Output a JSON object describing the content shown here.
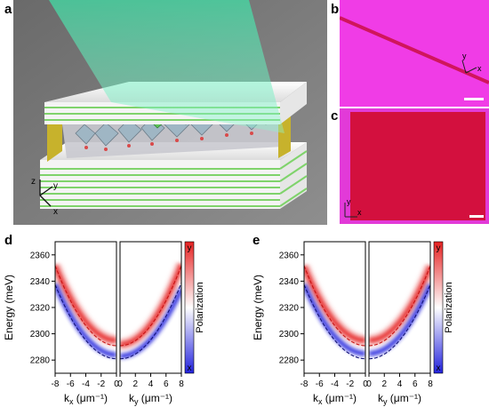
{
  "panels": {
    "a": {
      "letter": "a",
      "axes": {
        "z": "z",
        "y": "y",
        "x": "x"
      }
    },
    "b": {
      "letter": "b",
      "axes": {
        "y": "y",
        "x": "x"
      },
      "colors": {
        "bg": "#f03ce6",
        "line": "#d0155c"
      }
    },
    "c": {
      "letter": "c",
      "axes": {
        "y": "y",
        "x": "x"
      },
      "colors": {
        "bg": "#e23ad8",
        "square": "#d3103e"
      }
    },
    "d": {
      "letter": "d"
    },
    "e": {
      "letter": "e"
    }
  },
  "chart_data": [
    {
      "type": "heatmap",
      "panel": "d",
      "ylabel": "Energy (meV)",
      "ylim": [
        2270,
        2370
      ],
      "yticks": [
        "2360",
        "2340",
        "2320",
        "2300",
        "2280"
      ],
      "colorbar": {
        "label": "Polarization",
        "top": "y",
        "bottom": "x",
        "colors": [
          "#e62222",
          "#ffffff",
          "#2222dd"
        ]
      },
      "subplots": [
        {
          "xlabel_base": "k",
          "xlabel_sub": "x",
          "xlabel_unit": " (μm⁻¹)",
          "xlim": [
            -8,
            0
          ],
          "xticks": [
            "-8",
            "-6",
            "-4",
            "-2",
            "0"
          ],
          "red_branch": {
            "E0": 2295,
            "a": 0.89
          },
          "blue_branch": {
            "E0": 2284,
            "a": 0.84
          },
          "dashed_red": {
            "E0": 2291,
            "a": 0.95
          },
          "dashed_blue": {
            "E0": 2281,
            "a": 0.88
          }
        },
        {
          "xlabel_base": "k",
          "xlabel_sub": "y",
          "xlabel_unit": " (μm⁻¹)",
          "xlim": [
            0,
            8
          ],
          "xticks": [
            "0",
            "2",
            "4",
            "6",
            "8"
          ],
          "red_branch": {
            "E0": 2292,
            "a": 0.95
          },
          "blue_branch": {
            "E0": 2283,
            "a": 0.8
          },
          "dashed_red": {
            "E0": 2291,
            "a": 0.95
          },
          "dashed_blue": {
            "E0": 2281,
            "a": 0.9
          }
        }
      ]
    },
    {
      "type": "heatmap",
      "panel": "e",
      "ylabel": "Energy (meV)",
      "ylim": [
        2270,
        2370
      ],
      "yticks": [
        "2360",
        "2340",
        "2320",
        "2300",
        "2280"
      ],
      "colorbar": {
        "label": "Polarization",
        "top": "y",
        "bottom": "x",
        "colors": [
          "#e62222",
          "#ffffff",
          "#2222dd"
        ]
      },
      "subplots": [
        {
          "xlabel_base": "k",
          "xlabel_sub": "x",
          "xlabel_unit": " (μm⁻¹)",
          "xlim": [
            -8,
            0
          ],
          "xticks": [
            "-8",
            "-6",
            "-4",
            "-2",
            "0"
          ],
          "red_branch": {
            "E0": 2295,
            "a": 0.88
          },
          "blue_branch": {
            "E0": 2285,
            "a": 0.82
          },
          "dashed_red": {
            "E0": 2291,
            "a": 0.95
          },
          "dashed_blue": {
            "E0": 2281,
            "a": 0.88
          }
        },
        {
          "xlabel_base": "k",
          "xlabel_sub": "y",
          "xlabel_unit": " (μm⁻¹)",
          "xlim": [
            0,
            8
          ],
          "xticks": [
            "0",
            "2",
            "4",
            "6",
            "8"
          ],
          "red_branch": {
            "E0": 2295,
            "a": 0.88
          },
          "blue_branch": {
            "E0": 2285,
            "a": 0.82
          },
          "dashed_red": {
            "E0": 2291,
            "a": 0.95
          },
          "dashed_blue": {
            "E0": 2281,
            "a": 0.88
          }
        }
      ]
    }
  ]
}
